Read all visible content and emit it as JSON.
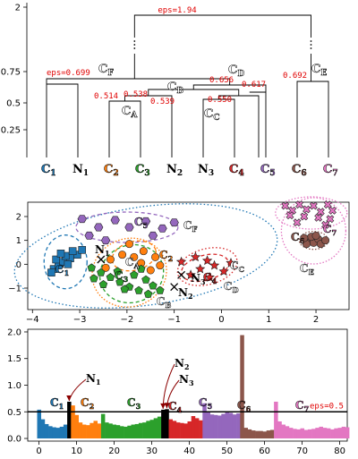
{
  "chart_data": [
    {
      "type": "dendrogram",
      "yticks": [
        "0.25",
        "0.5",
        "0.75",
        "2"
      ],
      "leaves": [
        "C1",
        "N1",
        "C2",
        "C3",
        "N2",
        "N3",
        "C4",
        "C5",
        "C6",
        "C7"
      ],
      "leaf_colors": [
        "#1f77b4",
        "#000000",
        "#ff7f0e",
        "#2ca02c",
        "#000000",
        "#000000",
        "#d62728",
        "#9467bd",
        "#8c564b",
        "#e377c2"
      ],
      "merges": [
        {
          "eps": "0.514",
          "cluster": "CA"
        },
        {
          "eps": "0.538",
          "cluster": "CB"
        },
        {
          "eps": "0.539",
          "cluster": ""
        },
        {
          "eps": "0.550",
          "cluster": "CC"
        },
        {
          "eps": "0.617",
          "cluster": ""
        },
        {
          "eps": "0.656",
          "cluster": "CD"
        },
        {
          "eps": "0.692",
          "cluster": "CE"
        },
        {
          "eps": "0.699",
          "cluster": "CF"
        },
        {
          "eps": "1.94",
          "cluster": ""
        }
      ],
      "eps_labels": [
        "eps=1.94",
        "eps=0.699",
        "0.514",
        "0.538",
        "0.539",
        "0.550",
        "0.617",
        "0.656",
        "0.692"
      ]
    },
    {
      "type": "scatter",
      "xticks": [
        "−4",
        "−3",
        "−2",
        "−1",
        "0",
        "1",
        "2"
      ],
      "yticks": [
        "2",
        "1",
        "0",
        "−1"
      ],
      "xlim": [
        -4.1,
        2.7
      ],
      "ylim": [
        -1.9,
        2.6
      ],
      "clusters": [
        {
          "name": "C1",
          "marker": "square",
          "color": "#1f77b4",
          "points": [
            [
              -3.55,
              -0.2
            ],
            [
              -3.45,
              -0.05
            ],
            [
              -3.35,
              0.1
            ],
            [
              -3.2,
              0.25
            ],
            [
              -3.05,
              0.4
            ],
            [
              -2.95,
              0.6
            ],
            [
              -3.3,
              0.35
            ],
            [
              -3.5,
              0.2
            ],
            [
              -3.6,
              -0.35
            ],
            [
              -3.4,
              0.45
            ],
            [
              -3.15,
              0.55
            ],
            [
              -3.25,
              0.0
            ]
          ]
        },
        {
          "name": "C2",
          "marker": "circle",
          "color": "#ff7f0e",
          "points": [
            [
              -1.95,
              0.85
            ],
            [
              -2.1,
              0.4
            ],
            [
              -2.35,
              0.2
            ],
            [
              -1.85,
              0.3
            ],
            [
              -1.7,
              0.05
            ],
            [
              -1.5,
              -0.25
            ],
            [
              -1.65,
              0.55
            ],
            [
              -1.4,
              0.3
            ],
            [
              -2.45,
              -0.15
            ],
            [
              -1.3,
              -0.05
            ]
          ]
        },
        {
          "name": "C3",
          "marker": "pentagon",
          "color": "#2ca02c",
          "points": [
            [
              -2.75,
              -0.15
            ],
            [
              -2.55,
              -0.35
            ],
            [
              -2.35,
              -0.55
            ],
            [
              -2.15,
              -0.75
            ],
            [
              -1.95,
              -0.95
            ],
            [
              -1.75,
              -1.1
            ],
            [
              -1.55,
              -1.25
            ],
            [
              -2.2,
              -0.3
            ],
            [
              -1.85,
              -0.45
            ],
            [
              -1.6,
              -0.65
            ],
            [
              -2.5,
              -0.85
            ],
            [
              -2.05,
              -1.05
            ],
            [
              -1.45,
              -0.9
            ],
            [
              -2.7,
              -0.6
            ],
            [
              -1.3,
              -1.1
            ],
            [
              -1.7,
              -0.2
            ]
          ]
        },
        {
          "name": "C4",
          "marker": "star",
          "color": "#d62728",
          "points": [
            [
              -0.85,
              0.1
            ],
            [
              -0.55,
              0.3
            ],
            [
              -0.3,
              0.15
            ],
            [
              -0.15,
              -0.05
            ],
            [
              -0.45,
              -0.2
            ],
            [
              -0.65,
              -0.45
            ],
            [
              -0.25,
              -0.55
            ],
            [
              0.05,
              -0.3
            ],
            [
              0.2,
              0.05
            ]
          ]
        },
        {
          "name": "C5",
          "marker": "hexagon",
          "color": "#9467bd",
          "points": [
            [
              -2.95,
              1.9
            ],
            [
              -2.6,
              1.55
            ],
            [
              -2.25,
              1.85
            ],
            [
              -1.95,
              1.55
            ],
            [
              -1.6,
              1.8
            ],
            [
              -1.25,
              1.5
            ],
            [
              -1.0,
              1.75
            ],
            [
              -2.8,
              1.2
            ],
            [
              -1.45,
              1.2
            ],
            [
              -2.45,
              1.0
            ]
          ]
        },
        {
          "name": "C6",
          "marker": "circle",
          "color": "#8c564b",
          "points": [
            [
              1.85,
              1.0
            ],
            [
              1.95,
              0.9
            ],
            [
              2.05,
              1.05
            ],
            [
              1.9,
              1.15
            ],
            [
              2.1,
              0.85
            ],
            [
              1.8,
              0.85
            ],
            [
              2.0,
              1.2
            ],
            [
              2.2,
              1.0
            ],
            [
              1.75,
              1.1
            ]
          ]
        },
        {
          "name": "C7",
          "marker": "x-filled",
          "color": "#e377c2",
          "points": [
            [
              1.35,
              2.45
            ],
            [
              1.65,
              2.5
            ],
            [
              1.95,
              2.45
            ],
            [
              2.25,
              2.5
            ],
            [
              1.5,
              2.25
            ],
            [
              1.8,
              2.3
            ],
            [
              2.1,
              2.2
            ],
            [
              2.35,
              2.25
            ],
            [
              1.45,
              2.05
            ],
            [
              1.75,
              2.0
            ],
            [
              2.05,
              1.95
            ],
            [
              2.3,
              1.9
            ],
            [
              1.6,
              1.75
            ],
            [
              2.2,
              1.65
            ]
          ]
        }
      ],
      "noise": [
        {
          "name": "N1",
          "x": -2.55,
          "y": 0.2
        },
        {
          "name": "N2",
          "x": -1.0,
          "y": -0.95
        },
        {
          "name": "N3",
          "x": -0.85,
          "y": -0.45
        }
      ],
      "labels": [
        "C1",
        "C2",
        "C3",
        "C4",
        "C5",
        "C6",
        "C7",
        "CA",
        "CB",
        "CC",
        "CD",
        "CE",
        "CF",
        "N1",
        "N2",
        "N3"
      ]
    },
    {
      "type": "bar",
      "xticks": [
        "0",
        "10",
        "20",
        "30",
        "40",
        "50",
        "60",
        "70",
        "80"
      ],
      "yticks": [
        "0.0",
        "0.5",
        "1.0",
        "1.5",
        "2.0"
      ],
      "xlim": [
        -3,
        82
      ],
      "ylim": [
        -0.05,
        2.05
      ],
      "threshold": 0.5,
      "threshold_label": "eps=0.5",
      "segments": [
        {
          "name": "C1",
          "color": "#1f77b4",
          "values": [
            0.54,
            0.36,
            0.27,
            0.23,
            0.21,
            0.2,
            0.22,
            0.26
          ]
        },
        {
          "name": "N1",
          "color": "#000000",
          "values": [
            0.69
          ]
        },
        {
          "name": "C2",
          "color": "#ff7f0e",
          "values": [
            0.62,
            0.44,
            0.3,
            0.26,
            0.25,
            0.29,
            0.33,
            0.28
          ]
        },
        {
          "name": "C3",
          "color": "#2ca02c",
          "values": [
            0.46,
            0.3,
            0.28,
            0.26,
            0.25,
            0.23,
            0.22,
            0.24,
            0.26,
            0.27,
            0.29,
            0.3,
            0.33,
            0.35,
            0.38,
            0.41
          ]
        },
        {
          "name": "N2",
          "color": "#000000",
          "values": [
            0.54
          ]
        },
        {
          "name": "N3",
          "color": "#000000",
          "values": [
            0.55
          ]
        },
        {
          "name": "C4",
          "color": "#d62728",
          "values": [
            0.36,
            0.33,
            0.3,
            0.29,
            0.28,
            0.32,
            0.42,
            0.38,
            0.34
          ]
        },
        {
          "name": "C5",
          "color": "#9467bd",
          "values": [
            0.66,
            0.49,
            0.45,
            0.44,
            0.43,
            0.46,
            0.5,
            0.48,
            0.45,
            0.47
          ]
        },
        {
          "name": "C6",
          "color": "#8c564b",
          "values": [
            1.94,
            0.2,
            0.17,
            0.15,
            0.14,
            0.14,
            0.13,
            0.15,
            0.16
          ]
        },
        {
          "name": "C7",
          "color": "#e377c2",
          "values": [
            0.69,
            0.32,
            0.26,
            0.23,
            0.2,
            0.18,
            0.17,
            0.19,
            0.16,
            0.17,
            0.18,
            0.2,
            0.22,
            0.2,
            0.19,
            0.17,
            0.19,
            0.2,
            0.22,
            0.21
          ]
        }
      ],
      "labels": [
        "C1",
        "C2",
        "C3",
        "C4",
        "C5",
        "C6",
        "C7",
        "N1",
        "N2",
        "N3"
      ]
    }
  ]
}
